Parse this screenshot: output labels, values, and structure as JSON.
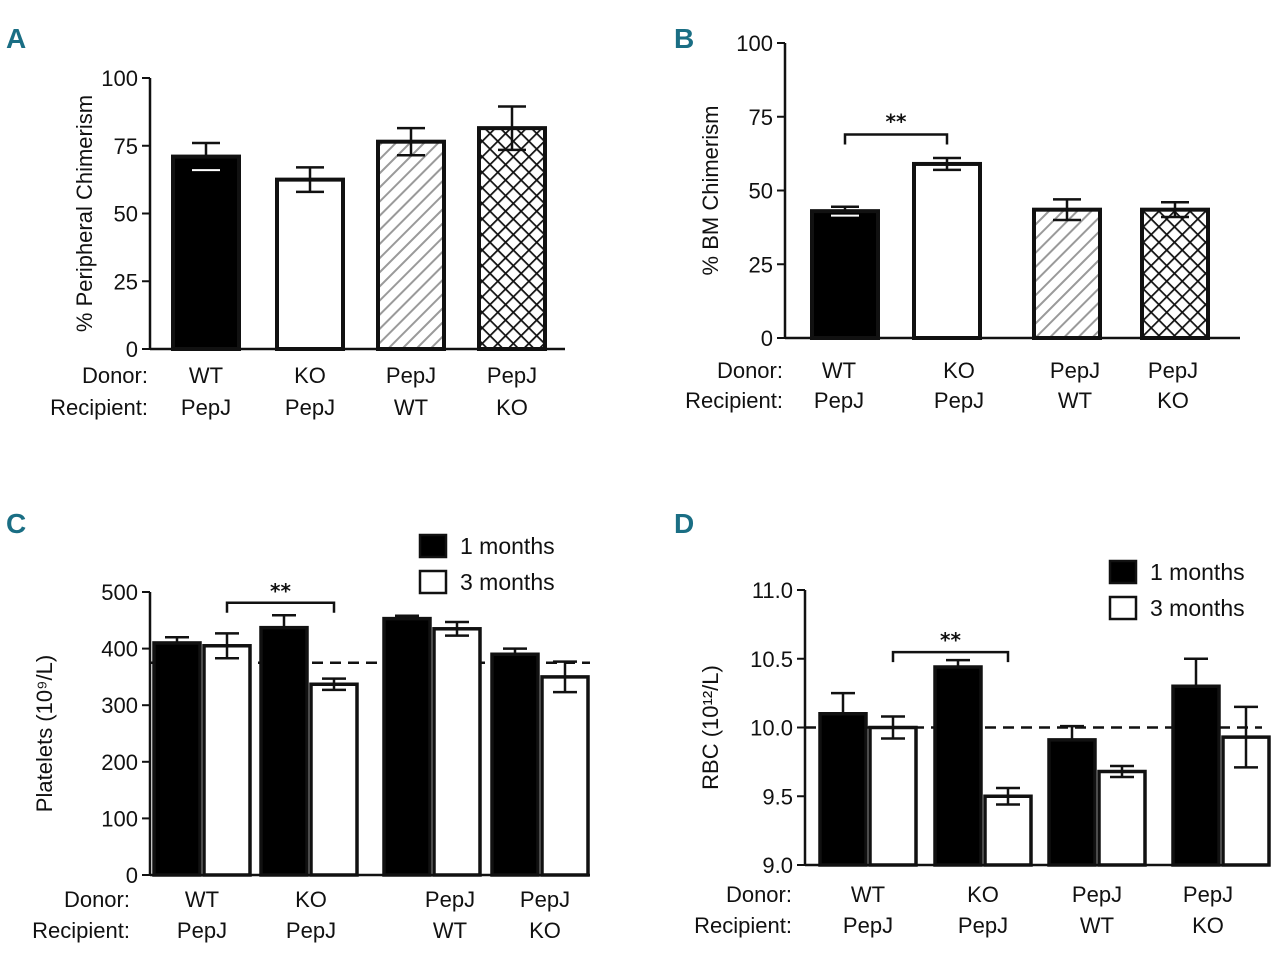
{
  "colors": {
    "panel_letter": "#1a6e84",
    "ink": "#111111",
    "hatch": "#9a9a9a"
  },
  "chart_data": [
    {
      "panel": "A",
      "type": "bar",
      "ylabel": "% Peripheral Chimerism",
      "ylim": [
        0,
        100
      ],
      "yticks": [
        "0",
        "25",
        "50",
        "75",
        "100"
      ],
      "row_labels": [
        "Donor:",
        "Recipient:"
      ],
      "categories": [
        {
          "donor": "WT",
          "recipient": "PepJ"
        },
        {
          "donor": "KO",
          "recipient": "PepJ"
        },
        {
          "donor": "PepJ",
          "recipient": "WT"
        },
        {
          "donor": "PepJ",
          "recipient": "KO"
        }
      ],
      "values": [
        71,
        62.5,
        76.5,
        81.5
      ],
      "errors": [
        5,
        4.5,
        5,
        8
      ],
      "fills": [
        "solid",
        "open",
        "hatch",
        "crosshatch"
      ],
      "significance": []
    },
    {
      "panel": "B",
      "type": "bar",
      "ylabel": "% BM Chimerism",
      "ylim": [
        0,
        100
      ],
      "yticks": [
        "0",
        "25",
        "50",
        "75",
        "100"
      ],
      "row_labels": [
        "Donor:",
        "Recipient:"
      ],
      "categories": [
        {
          "donor": "WT",
          "recipient": "PepJ"
        },
        {
          "donor": "KO",
          "recipient": "PepJ"
        },
        {
          "donor": "PepJ",
          "recipient": "WT"
        },
        {
          "donor": "PepJ",
          "recipient": "KO"
        }
      ],
      "values": [
        43,
        59,
        43.5,
        43.5
      ],
      "errors": [
        1.5,
        2,
        3.5,
        2.5
      ],
      "fills": [
        "solid",
        "open",
        "hatch",
        "crosshatch"
      ],
      "significance": [
        {
          "from": 0,
          "to": 1,
          "label": "**"
        }
      ]
    },
    {
      "panel": "C",
      "type": "bar",
      "ylabel": "Platelets (10⁹/L)",
      "ylim": [
        0,
        500
      ],
      "yticks": [
        "0",
        "100",
        "200",
        "300",
        "400",
        "500"
      ],
      "row_labels": [
        "Donor:",
        "Recipient:"
      ],
      "categories": [
        {
          "donor": "WT",
          "recipient": "PepJ"
        },
        {
          "donor": "KO",
          "recipient": "PepJ"
        },
        {
          "donor": "PepJ",
          "recipient": "WT"
        },
        {
          "donor": "PepJ",
          "recipient": "KO"
        }
      ],
      "series": [
        {
          "name": "1 months",
          "fill": "solid",
          "values": [
            410,
            437,
            453,
            390
          ],
          "errors": [
            10,
            22,
            5,
            10
          ]
        },
        {
          "name": "3 months",
          "fill": "open",
          "values": [
            405,
            337,
            435,
            350
          ],
          "errors": [
            22,
            10,
            12,
            27
          ]
        }
      ],
      "reference_line": 375,
      "significance": [
        {
          "from": [
            0,
            1
          ],
          "to": [
            1,
            1
          ],
          "label": "**"
        }
      ]
    },
    {
      "panel": "D",
      "type": "bar",
      "ylabel": "RBC (10¹²/L)",
      "ylim": [
        9.0,
        11.0
      ],
      "yticks": [
        "9.0",
        "9.5",
        "10.0",
        "10.5",
        "11.0"
      ],
      "row_labels": [
        "Donor:",
        "Recipient:"
      ],
      "categories": [
        {
          "donor": "WT",
          "recipient": "PepJ"
        },
        {
          "donor": "KO",
          "recipient": "PepJ"
        },
        {
          "donor": "PepJ",
          "recipient": "WT"
        },
        {
          "donor": "PepJ",
          "recipient": "KO"
        }
      ],
      "series": [
        {
          "name": "1 months",
          "fill": "solid",
          "values": [
            10.1,
            10.44,
            9.91,
            10.3
          ],
          "errors": [
            0.15,
            0.05,
            0.1,
            0.2
          ]
        },
        {
          "name": "3 months",
          "fill": "open",
          "values": [
            10.0,
            9.5,
            9.68,
            9.93
          ],
          "errors": [
            0.08,
            0.06,
            0.04,
            0.22
          ]
        }
      ],
      "reference_line": 10.0,
      "significance": [
        {
          "from": [
            0,
            1
          ],
          "to": [
            1,
            1
          ],
          "label": "**"
        }
      ]
    }
  ]
}
